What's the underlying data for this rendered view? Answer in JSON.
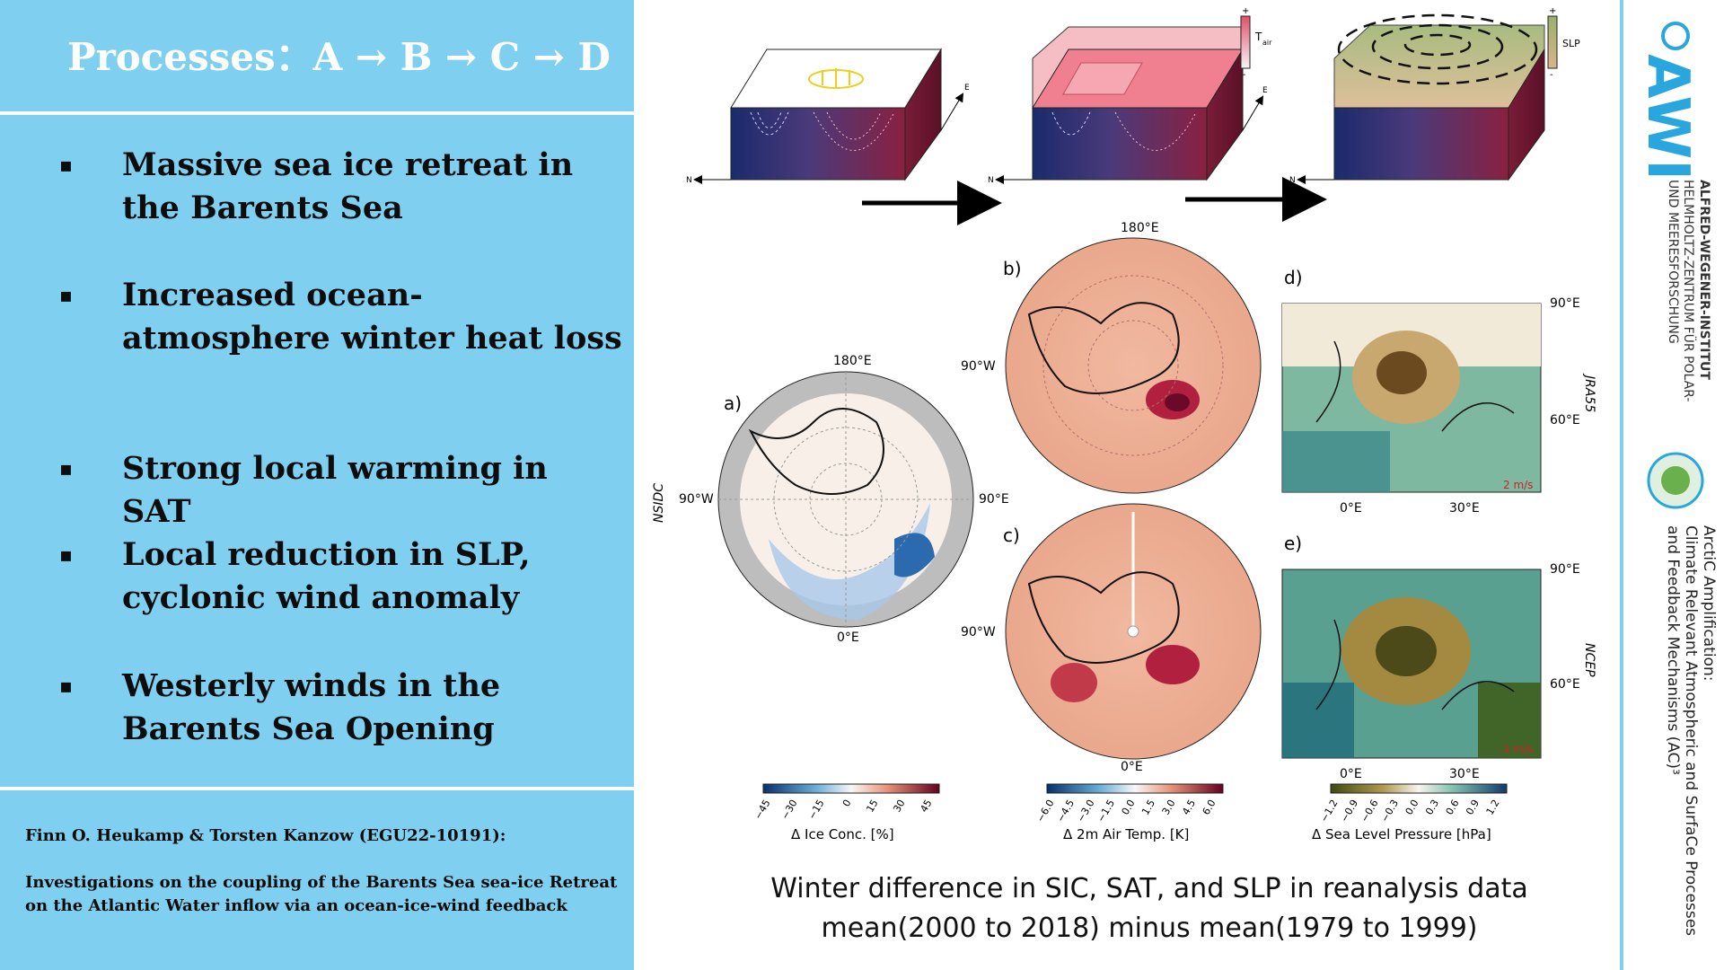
{
  "header": {
    "title": "Processes：A → B → C → D"
  },
  "bullets": [
    {
      "mark": "▪",
      "text": "Massive sea ice retreat in the Barents Sea"
    },
    {
      "mark": "▪",
      "text": "Increased ocean-atmosphere winter heat loss"
    },
    {
      "mark": "▪",
      "text": "Strong local warming in SAT"
    },
    {
      "mark": "▪",
      "text": "Local reduction in SLP, cyclonic wind anomaly"
    },
    {
      "mark": "▪",
      "text": "Westerly winds in the Barents Sea Opening"
    }
  ],
  "footer": {
    "authors": "Finn O. Heukamp & Torsten Kanzow (EGU22-10191):",
    "title_line1": "Investigations on the coupling of the Barents Sea sea-ice Retreat",
    "title_line2": "on the Atlantic Water inflow via an ocean-ice-wind feedback"
  },
  "diagram": {
    "axis_n": "N",
    "axis_e": "E",
    "tair_label": "T",
    "tair_sub": "air",
    "slp_label": "SLP",
    "plus": "+",
    "minus": "-"
  },
  "maps": {
    "a": {
      "panel": "a)",
      "top": "180°E",
      "left": "90°W",
      "right": "90°E",
      "bottom": "0°E",
      "side": "NSIDC"
    },
    "b": {
      "panel": "b)",
      "top": "180°E",
      "left": "90°W"
    },
    "c": {
      "panel": "c)",
      "left": "90°W",
      "bottom": "0°E"
    },
    "d": {
      "panel": "d)",
      "lat_hi": "90°E",
      "lat_lo": "60°E",
      "lon_a": "0°E",
      "lon_b": "30°E",
      "side": "JRA55",
      "wind": "2 m/s"
    },
    "e": {
      "panel": "e)",
      "lat_hi": "90°E",
      "lat_lo": "60°E",
      "lon_a": "0°E",
      "lon_b": "30°E",
      "side": "NCEP",
      "wind": "2 m/s"
    }
  },
  "colorbars": {
    "ice": {
      "label": "Δ Ice Conc. [%]",
      "ticks": [
        "−45",
        "−30",
        "−15",
        "0",
        "15",
        "30",
        "45"
      ]
    },
    "sat": {
      "label": "Δ 2m Air Temp. [K]",
      "ticks": [
        "−6.0",
        "−4.5",
        "−3.0",
        "−1.5",
        "0.0",
        "1.5",
        "3.0",
        "4.5",
        "6.0"
      ]
    },
    "slp": {
      "label": "Δ Sea Level Pressure [hPa]",
      "ticks": [
        "−1.2",
        "−0.9",
        "−0.6",
        "−0.3",
        "0.0",
        "0.3",
        "0.6",
        "0.9",
        "1.2"
      ]
    }
  },
  "caption": {
    "line1": "Winter difference in SIC, SAT, and SLP in reanalysis data",
    "line2": "mean(2000 to 2018) minus mean(1979 to 1999)"
  },
  "sidebar": {
    "logo": "AWI",
    "inst1": "ALFRED-WEGENER-INSTITUT",
    "inst2": "HELMHOLTZ-ZENTRUM FÜR POLAR-",
    "inst3": "UND MEERESFORSCHUNG",
    "ac3_1": "ArctiC Amplification:",
    "ac3_2": "Climate Relevant Atmospheric and SurfaCe Processes",
    "ac3_3": "and Feedback Mechanisms (AC)³"
  },
  "colors": {
    "left_bg": "#7fd0f0",
    "ocean_red": "#8a2040",
    "ocean_blue": "#1b2a6b",
    "awi_blue": "#2aa6de",
    "accent_red": "#c0392b"
  }
}
